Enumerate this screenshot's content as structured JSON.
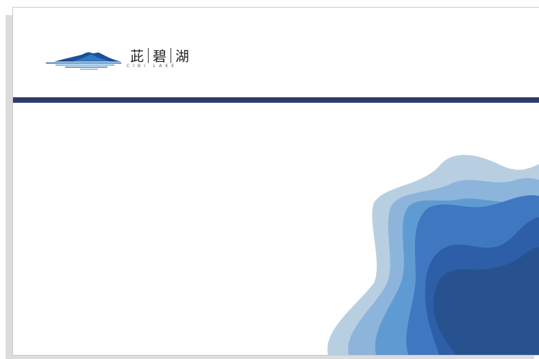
{
  "logo": {
    "name_chars": [
      "茈",
      "碧",
      "湖"
    ],
    "subtitle": "CIBI LAKE"
  }
}
